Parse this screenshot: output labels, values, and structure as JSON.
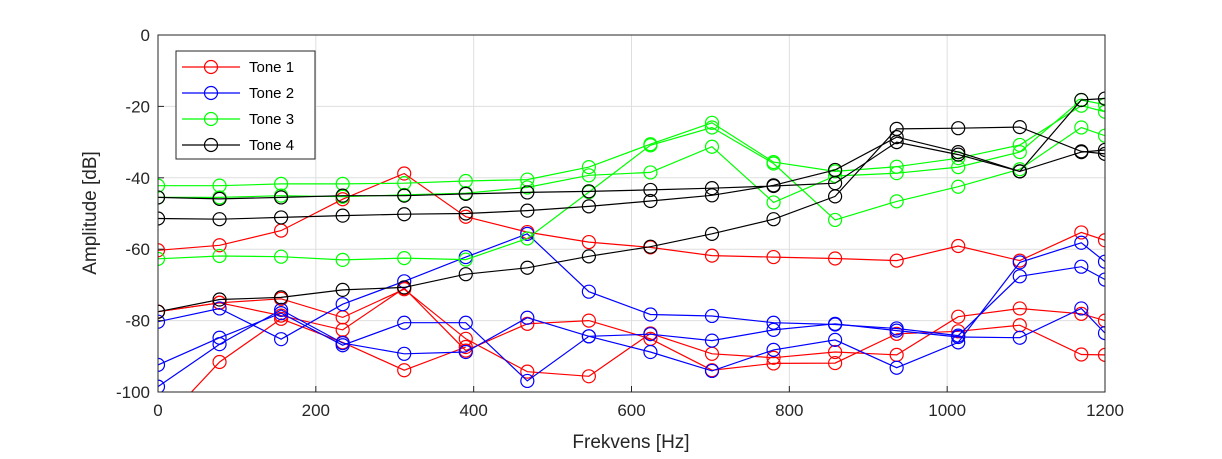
{
  "chart_data": {
    "type": "line",
    "xlabel": "Frekvens [Hz]",
    "ylabel": "Amplitude [dB]",
    "xlim": [
      0,
      1200
    ],
    "ylim": [
      -100,
      0
    ],
    "xticks": [
      "0",
      "200",
      "400",
      "600",
      "800",
      "1000",
      "1200"
    ],
    "yticks": [
      "0",
      "-20",
      "-40",
      "-60",
      "-80",
      "-100"
    ],
    "grid": true,
    "legend_position": "top-left",
    "legend": [
      {
        "label": "Tone 1",
        "color": "#ff0000"
      },
      {
        "label": "Tone 2",
        "color": "#0000ff"
      },
      {
        "label": "Tone 3",
        "color": "#00ff00"
      },
      {
        "label": "Tone 4",
        "color": "#000000"
      }
    ],
    "x": [
      0,
      78,
      156,
      234,
      312,
      390,
      468,
      546,
      624,
      702,
      780,
      858,
      936,
      1014,
      1092,
      1170,
      1200
    ],
    "series": [
      {
        "name": "Tone 1",
        "color": "#ff0000",
        "values": [
          -60.3,
          -58.9,
          -54.8,
          -46.0,
          -38.8,
          -50.9,
          -55.2,
          -58.0,
          -59.5,
          -61.8,
          -62.2,
          -62.6,
          -63.2,
          -59.1,
          -63.2,
          -55.3,
          -57.5
        ]
      },
      {
        "name": null,
        "color": "#ff0000",
        "values": [
          -77.5,
          -75.0,
          -73.9,
          -79.1,
          -71.2,
          -85.1,
          -94.3,
          -95.6,
          -83.6,
          -89.3,
          -90.4,
          -88.8,
          -89.6,
          -78.9,
          -76.6,
          -78.1,
          -80.0
        ]
      },
      {
        "name": null,
        "color": "#ff0000",
        "values": [
          -77.5,
          -75.0,
          -78.6,
          -82.6,
          -70.9,
          -88.4,
          -80.9,
          -80.0,
          -85.1,
          -93.9,
          -92.0,
          -91.9,
          -83.7,
          -83.0,
          -81.3,
          -89.5,
          -89.6
        ]
      },
      {
        "name": null,
        "color": "#ff0000",
        "values": [
          -110.0,
          -91.6,
          -79.5,
          -86.1,
          -93.9,
          -87.4,
          null,
          null,
          null,
          null,
          null,
          null,
          null,
          null,
          null,
          null,
          null
        ]
      },
      {
        "name": "Tone 2",
        "color": "#0000ff",
        "values": [
          -80.3,
          -76.6,
          -85.2,
          -75.4,
          -69.0,
          -62.2,
          -55.7,
          -71.9,
          -78.3,
          -78.7,
          -80.6,
          -81.1,
          -82.2,
          -84.2,
          -67.6,
          -64.9,
          -68.5
        ]
      },
      {
        "name": null,
        "color": "#0000ff",
        "values": [
          -92.4,
          -84.8,
          -77.9,
          -86.9,
          -80.6,
          -80.6,
          -96.9,
          -84.4,
          -83.8,
          -85.6,
          -82.6,
          -80.9,
          -82.8,
          -84.6,
          -84.8,
          -76.6,
          -83.5
        ]
      },
      {
        "name": null,
        "color": "#0000ff",
        "values": [
          -98.5,
          -86.6,
          -77.0,
          -86.3,
          -89.3,
          -88.8,
          -79.2,
          -84.4,
          -88.8,
          -94.1,
          -88.2,
          -85.4,
          -93.2,
          -86.1,
          -63.7,
          -58.2,
          -63.5
        ]
      },
      {
        "name": "Tone 3",
        "color": "#00ff00",
        "values": [
          -42.2,
          -42.2,
          -41.7,
          -41.7,
          -41.5,
          -40.9,
          -40.5,
          -37.0,
          -30.6,
          -24.6,
          -35.6,
          -38.2,
          -36.9,
          -34.5,
          -30.8,
          -19.8,
          -21.5
        ]
      },
      {
        "name": null,
        "color": "#00ff00",
        "values": [
          -45.5,
          -45.5,
          -45.0,
          -45.3,
          -44.8,
          -44.3,
          -42.7,
          -39.3,
          -38.5,
          -31.3,
          -46.9,
          -39.5,
          -38.7,
          -37.0,
          -32.8,
          -18.2,
          -19.5
        ]
      },
      {
        "name": null,
        "color": "#00ff00",
        "values": [
          -62.7,
          -61.9,
          -62.1,
          -63.0,
          -62.5,
          -62.9,
          -57.0,
          -44.0,
          -30.9,
          -25.9,
          -36.0,
          -51.8,
          -46.6,
          -42.5,
          -37.6,
          -25.9,
          -28.2
        ]
      },
      {
        "name": "Tone 4",
        "color": "#000000",
        "values": [
          -45.5,
          -45.9,
          -45.5,
          -45.0,
          -45.0,
          -44.5,
          -44.1,
          -43.8,
          -43.4,
          -42.9,
          -42.3,
          -41.5,
          -30.0,
          -33.5,
          -38.2,
          -32.8,
          -32.2
        ]
      },
      {
        "name": null,
        "color": "#000000",
        "values": [
          -51.4,
          -51.6,
          -51.1,
          -50.6,
          -50.2,
          -50.0,
          -49.2,
          -48.0,
          -46.5,
          -44.9,
          -42.1,
          -37.8,
          -28.6,
          -32.8,
          -38.2,
          -18.2,
          -17.8
        ]
      },
      {
        "name": null,
        "color": "#000000",
        "values": [
          -77.5,
          -74.1,
          -73.5,
          -71.4,
          -70.7,
          -67.0,
          -65.2,
          -62.0,
          -59.3,
          -55.7,
          -51.6,
          -45.2,
          -26.3,
          -26.1,
          -25.8,
          -32.6,
          -33.3
        ]
      }
    ]
  }
}
